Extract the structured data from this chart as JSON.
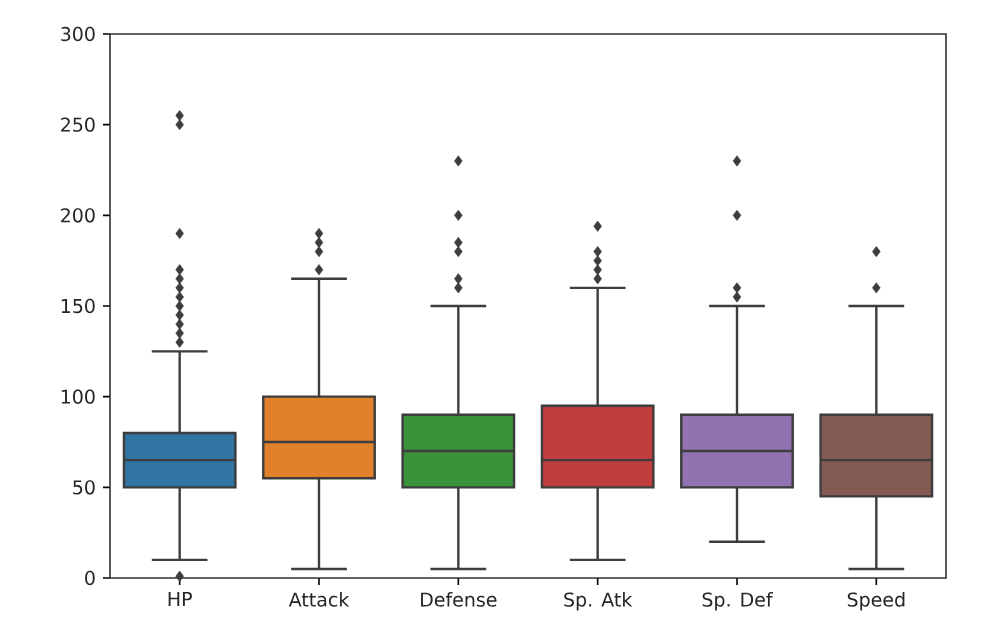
{
  "chart_data": {
    "type": "box",
    "categories": [
      "HP",
      "Attack",
      "Defense",
      "Sp. Atk",
      "Sp. Def",
      "Speed"
    ],
    "colors": [
      "#3274a1",
      "#e1812c",
      "#3a923a",
      "#c03d3e",
      "#9372b2",
      "#845b53"
    ],
    "boxes": [
      {
        "low": 10,
        "q1": 50,
        "median": 65,
        "q3": 80,
        "high": 125,
        "outliers": [
          1,
          130,
          135,
          140,
          145,
          150,
          155,
          160,
          165,
          170,
          190,
          250,
          255
        ]
      },
      {
        "low": 5,
        "q1": 55,
        "median": 75,
        "q3": 100,
        "high": 165,
        "outliers": [
          170,
          180,
          185,
          190
        ]
      },
      {
        "low": 5,
        "q1": 50,
        "median": 70,
        "q3": 90,
        "high": 150,
        "outliers": [
          160,
          165,
          180,
          185,
          200,
          230
        ]
      },
      {
        "low": 10,
        "q1": 50,
        "median": 65,
        "q3": 95,
        "high": 160,
        "outliers": [
          165,
          170,
          175,
          180,
          194
        ]
      },
      {
        "low": 20,
        "q1": 50,
        "median": 70,
        "q3": 90,
        "high": 150,
        "outliers": [
          155,
          160,
          200,
          230
        ]
      },
      {
        "low": 5,
        "q1": 45,
        "median": 65,
        "q3": 90,
        "high": 150,
        "outliers": [
          160,
          180
        ]
      }
    ],
    "ylim": [
      0,
      300
    ],
    "yticks": [
      0,
      50,
      100,
      150,
      200,
      250,
      300
    ],
    "marker": "diamond"
  }
}
